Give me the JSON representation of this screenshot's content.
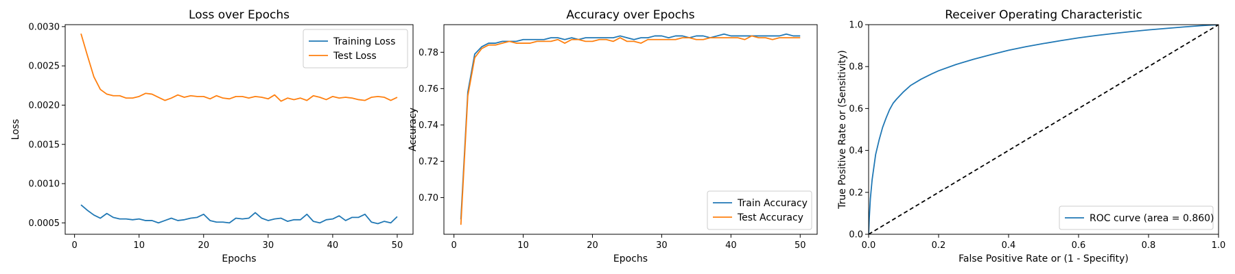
{
  "chart_data": [
    {
      "type": "line",
      "title": "Loss over Epochs",
      "xlabel": "Epochs",
      "ylabel": "Loss",
      "xlim": [
        -1.45,
        52.45
      ],
      "ylim": [
        0.000355,
        0.003025
      ],
      "xticks": [
        0,
        10,
        20,
        30,
        40,
        50
      ],
      "xtick_labels": [
        "0",
        "10",
        "20",
        "30",
        "40",
        "50"
      ],
      "yticks": [
        0.0005,
        0.001,
        0.0015,
        0.002,
        0.0025,
        0.003
      ],
      "ytick_labels": [
        "0.0005",
        "0.0010",
        "0.0015",
        "0.0020",
        "0.0025",
        "0.0030"
      ],
      "grid": false,
      "legend_position": "top-right",
      "series": [
        {
          "name": "Training Loss",
          "color": "#1f77b4",
          "x": [
            1,
            2,
            3,
            4,
            5,
            6,
            7,
            8,
            9,
            10,
            11,
            12,
            13,
            14,
            15,
            16,
            17,
            18,
            19,
            20,
            21,
            22,
            23,
            24,
            25,
            26,
            27,
            28,
            29,
            30,
            31,
            32,
            33,
            34,
            35,
            36,
            37,
            38,
            39,
            40,
            41,
            42,
            43,
            44,
            45,
            46,
            47,
            48,
            49,
            50
          ],
          "values": [
            0.00073,
            0.00066,
            0.0006,
            0.00056,
            0.00062,
            0.00057,
            0.00055,
            0.00055,
            0.00054,
            0.00055,
            0.00053,
            0.00053,
            0.0005,
            0.00053,
            0.00056,
            0.00053,
            0.00054,
            0.00056,
            0.00057,
            0.00061,
            0.00053,
            0.00051,
            0.00051,
            0.0005,
            0.00056,
            0.00055,
            0.00056,
            0.00063,
            0.00056,
            0.00053,
            0.00055,
            0.00056,
            0.00052,
            0.00054,
            0.00054,
            0.00061,
            0.00052,
            0.0005,
            0.00054,
            0.00055,
            0.00059,
            0.00053,
            0.00057,
            0.00057,
            0.00061,
            0.00051,
            0.00049,
            0.00052,
            0.0005,
            0.00058
          ]
        },
        {
          "name": "Test Loss",
          "color": "#ff7f0e",
          "x": [
            1,
            2,
            3,
            4,
            5,
            6,
            7,
            8,
            9,
            10,
            11,
            12,
            13,
            14,
            15,
            16,
            17,
            18,
            19,
            20,
            21,
            22,
            23,
            24,
            25,
            26,
            27,
            28,
            29,
            30,
            31,
            32,
            33,
            34,
            35,
            36,
            37,
            38,
            39,
            40,
            41,
            42,
            43,
            44,
            45,
            46,
            47,
            48,
            49,
            50
          ],
          "values": [
            0.00291,
            0.00263,
            0.00236,
            0.0022,
            0.00214,
            0.00212,
            0.00212,
            0.00209,
            0.00209,
            0.00211,
            0.00215,
            0.00214,
            0.0021,
            0.00206,
            0.00209,
            0.00213,
            0.0021,
            0.00212,
            0.00211,
            0.00211,
            0.00208,
            0.00212,
            0.00209,
            0.00208,
            0.00211,
            0.00211,
            0.00209,
            0.00211,
            0.0021,
            0.00208,
            0.00213,
            0.00205,
            0.00209,
            0.00207,
            0.00209,
            0.00206,
            0.00212,
            0.0021,
            0.00207,
            0.00211,
            0.00209,
            0.0021,
            0.00209,
            0.00207,
            0.00206,
            0.0021,
            0.00211,
            0.0021,
            0.00206,
            0.0021
          ]
        }
      ]
    },
    {
      "type": "line",
      "title": "Accuracy over Epochs",
      "xlabel": "Epochs",
      "ylabel": "Accuracy",
      "xlim": [
        -1.45,
        52.45
      ],
      "ylim": [
        0.6798,
        0.7952
      ],
      "xticks": [
        0,
        10,
        20,
        30,
        40,
        50
      ],
      "xtick_labels": [
        "0",
        "10",
        "20",
        "30",
        "40",
        "50"
      ],
      "yticks": [
        0.7,
        0.72,
        0.74,
        0.76,
        0.78
      ],
      "ytick_labels": [
        "0.70",
        "0.72",
        "0.74",
        "0.76",
        "0.78"
      ],
      "grid": false,
      "legend_position": "bottom-right",
      "series": [
        {
          "name": "Train Accuracy",
          "color": "#1f77b4",
          "x": [
            1,
            2,
            3,
            4,
            5,
            6,
            7,
            8,
            9,
            10,
            11,
            12,
            13,
            14,
            15,
            16,
            17,
            18,
            19,
            20,
            21,
            22,
            23,
            24,
            25,
            26,
            27,
            28,
            29,
            30,
            31,
            32,
            33,
            34,
            35,
            36,
            37,
            38,
            39,
            40,
            41,
            42,
            43,
            44,
            45,
            46,
            47,
            48,
            49,
            50
          ],
          "values": [
            0.688,
            0.758,
            0.779,
            0.783,
            0.785,
            0.785,
            0.786,
            0.786,
            0.786,
            0.787,
            0.787,
            0.787,
            0.787,
            0.788,
            0.788,
            0.787,
            0.788,
            0.787,
            0.788,
            0.788,
            0.788,
            0.788,
            0.788,
            0.789,
            0.788,
            0.787,
            0.788,
            0.788,
            0.789,
            0.789,
            0.788,
            0.789,
            0.789,
            0.788,
            0.789,
            0.789,
            0.788,
            0.789,
            0.79,
            0.789,
            0.789,
            0.789,
            0.789,
            0.789,
            0.789,
            0.789,
            0.789,
            0.79,
            0.789,
            0.789
          ]
        },
        {
          "name": "Test Accuracy",
          "color": "#ff7f0e",
          "x": [
            1,
            2,
            3,
            4,
            5,
            6,
            7,
            8,
            9,
            10,
            11,
            12,
            13,
            14,
            15,
            16,
            17,
            18,
            19,
            20,
            21,
            22,
            23,
            24,
            25,
            26,
            27,
            28,
            29,
            30,
            31,
            32,
            33,
            34,
            35,
            36,
            37,
            38,
            39,
            40,
            41,
            42,
            43,
            44,
            45,
            46,
            47,
            48,
            49,
            50
          ],
          "values": [
            0.685,
            0.756,
            0.777,
            0.782,
            0.784,
            0.784,
            0.785,
            0.786,
            0.785,
            0.785,
            0.785,
            0.786,
            0.786,
            0.786,
            0.787,
            0.785,
            0.787,
            0.787,
            0.786,
            0.786,
            0.787,
            0.787,
            0.786,
            0.788,
            0.786,
            0.786,
            0.785,
            0.787,
            0.787,
            0.787,
            0.787,
            0.787,
            0.788,
            0.788,
            0.787,
            0.787,
            0.788,
            0.788,
            0.788,
            0.788,
            0.788,
            0.787,
            0.789,
            0.788,
            0.788,
            0.787,
            0.788,
            0.788,
            0.788,
            0.788
          ]
        }
      ]
    },
    {
      "type": "line",
      "title": "Receiver Operating Characteristic",
      "xlabel": "False Positive Rate or (1 - Specifity)",
      "ylabel": "True Positive Rate or (Sensitivity)",
      "xlim": [
        0.0,
        1.0
      ],
      "ylim": [
        0.0,
        1.0
      ],
      "xticks": [
        0.0,
        0.2,
        0.4,
        0.6,
        0.8,
        1.0
      ],
      "xtick_labels": [
        "0.0",
        "0.2",
        "0.4",
        "0.6",
        "0.8",
        "1.0"
      ],
      "yticks": [
        0.0,
        0.2,
        0.4,
        0.6,
        0.8,
        1.0
      ],
      "ytick_labels": [
        "0.0",
        "0.2",
        "0.4",
        "0.6",
        "0.8",
        "1.0"
      ],
      "grid": false,
      "legend_position": "bottom-right",
      "series": [
        {
          "name": "ROC curve (area = 0.860)",
          "color": "#1f77b4",
          "x": [
            0.0,
            0.002,
            0.005,
            0.01,
            0.015,
            0.02,
            0.03,
            0.04,
            0.05,
            0.06,
            0.07,
            0.08,
            0.1,
            0.12,
            0.15,
            0.18,
            0.2,
            0.25,
            0.3,
            0.35,
            0.4,
            0.45,
            0.5,
            0.55,
            0.6,
            0.65,
            0.7,
            0.75,
            0.8,
            0.85,
            0.9,
            0.95,
            1.0
          ],
          "values": [
            0.0,
            0.08,
            0.17,
            0.26,
            0.32,
            0.38,
            0.45,
            0.51,
            0.555,
            0.595,
            0.625,
            0.645,
            0.68,
            0.71,
            0.74,
            0.765,
            0.78,
            0.81,
            0.835,
            0.857,
            0.878,
            0.895,
            0.91,
            0.924,
            0.937,
            0.948,
            0.958,
            0.967,
            0.975,
            0.982,
            0.989,
            0.995,
            1.0
          ]
        },
        {
          "name": "",
          "color": "#000000",
          "dashed": true,
          "x": [
            0.0,
            1.0
          ],
          "values": [
            0.0,
            1.0
          ]
        }
      ]
    }
  ]
}
